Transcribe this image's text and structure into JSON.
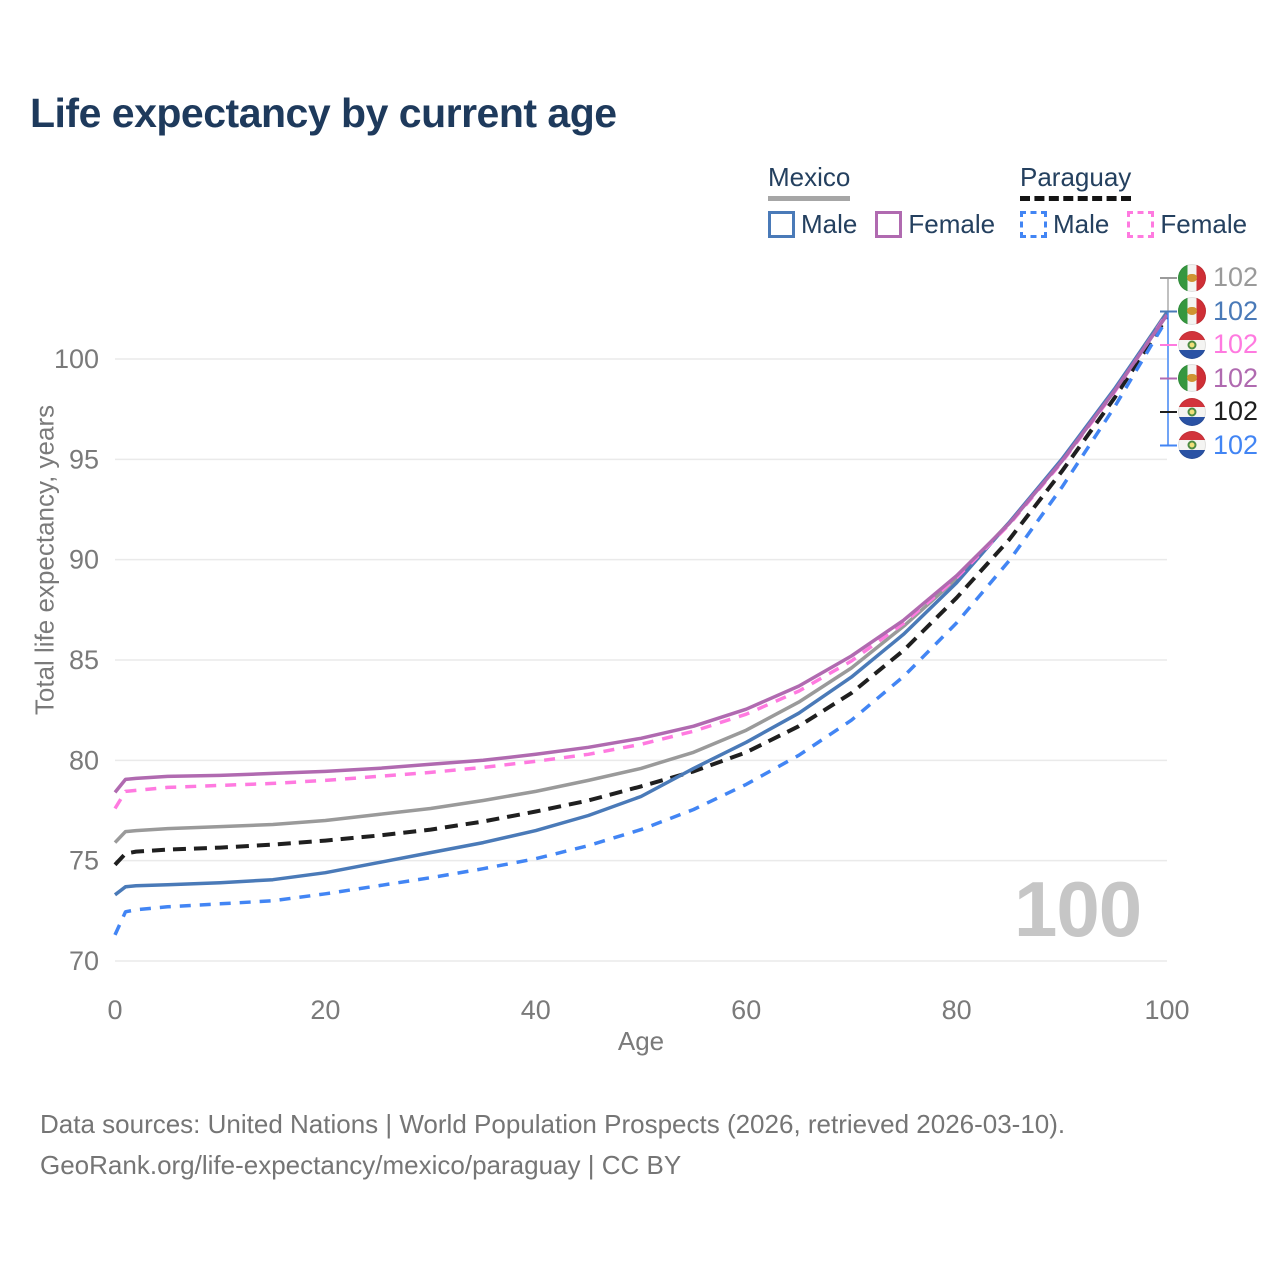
{
  "title": "Life expectancy by current age",
  "legend": {
    "groups": [
      {
        "country": "Mexico",
        "line_style": "solid",
        "items": [
          {
            "label": "Male",
            "series": "mexico_male"
          },
          {
            "label": "Female",
            "series": "mexico_female"
          }
        ]
      },
      {
        "country": "Paraguay",
        "line_style": "dashed",
        "items": [
          {
            "label": "Male",
            "series": "paraguay_male"
          },
          {
            "label": "Female",
            "series": "paraguay_female"
          }
        ]
      }
    ]
  },
  "watermark": "100",
  "footer": {
    "line1": "Data sources: United Nations | World Population Prospects (2026, retrieved 2026-03-10).",
    "line2": "GeoRank.org/life-expectancy/mexico/paraguay | CC BY"
  },
  "end_labels": [
    {
      "flag": "mexico",
      "series": "mexico_total",
      "value": "102",
      "color": "#9a9a9a"
    },
    {
      "flag": "mexico",
      "series": "mexico_male",
      "value": "102",
      "color": "#4a7ab8"
    },
    {
      "flag": "paraguay",
      "series": "paraguay_female",
      "value": "102",
      "color": "#ff7ae0"
    },
    {
      "flag": "mexico",
      "series": "mexico_female",
      "value": "102",
      "color": "#b06ab0"
    },
    {
      "flag": "paraguay",
      "series": "paraguay_total",
      "value": "102",
      "color": "#1f1f1f"
    },
    {
      "flag": "paraguay",
      "series": "paraguay_male",
      "value": "102",
      "color": "#4285f4"
    }
  ],
  "chart_data": {
    "type": "line",
    "title": "Life expectancy by current age",
    "xlabel": "Age",
    "ylabel": "Total life expectancy, years",
    "xlim": [
      0,
      100
    ],
    "ylim": [
      70,
      100
    ],
    "xticks": [
      0,
      20,
      40,
      60,
      80,
      100
    ],
    "yticks": [
      70,
      75,
      80,
      85,
      90,
      95,
      100
    ],
    "grid": true,
    "legend_position": "top-right",
    "x": [
      0,
      1,
      2,
      5,
      10,
      15,
      20,
      25,
      30,
      35,
      40,
      45,
      50,
      55,
      60,
      65,
      70,
      75,
      80,
      85,
      90,
      95,
      100
    ],
    "series": [
      {
        "key": "mexico_total",
        "name": "Mexico (both sexes)",
        "country": "Mexico",
        "dash": "solid",
        "color": "#9a9a9a",
        "values": [
          75.9,
          76.45,
          76.5,
          76.6,
          76.7,
          76.8,
          77.0,
          77.3,
          77.6,
          78.0,
          78.45,
          79.0,
          79.6,
          80.4,
          81.5,
          82.9,
          84.6,
          86.7,
          89.05,
          91.85,
          94.95,
          98.45,
          102.35
        ]
      },
      {
        "key": "mexico_male",
        "name": "Mexico Male",
        "country": "Mexico",
        "dash": "solid",
        "color": "#4a7ab8",
        "values": [
          73.3,
          73.7,
          73.75,
          73.8,
          73.9,
          74.05,
          74.4,
          74.9,
          75.4,
          75.9,
          76.5,
          77.25,
          78.2,
          79.6,
          80.9,
          82.35,
          84.15,
          86.3,
          88.85,
          91.85,
          95.0,
          98.5,
          102.3
        ]
      },
      {
        "key": "mexico_female",
        "name": "Mexico Female",
        "country": "Mexico",
        "dash": "solid",
        "color": "#b06ab0",
        "values": [
          78.4,
          79.05,
          79.1,
          79.2,
          79.25,
          79.35,
          79.45,
          79.6,
          79.8,
          80.0,
          80.3,
          80.65,
          81.1,
          81.7,
          82.55,
          83.7,
          85.2,
          87.0,
          89.2,
          91.8,
          94.9,
          98.4,
          102.2
        ]
      },
      {
        "key": "paraguay_total",
        "name": "Paraguay (both sexes)",
        "country": "Paraguay",
        "dash": "dashed",
        "color": "#1f1f1f",
        "values": [
          74.8,
          75.35,
          75.45,
          75.55,
          75.65,
          75.8,
          76.0,
          76.25,
          76.55,
          76.95,
          77.45,
          78.0,
          78.7,
          79.45,
          80.4,
          81.7,
          83.35,
          85.5,
          88.1,
          91.0,
          94.4,
          98.05,
          102.1
        ]
      },
      {
        "key": "paraguay_male",
        "name": "Paraguay Male",
        "country": "Paraguay",
        "dash": "dashed",
        "color": "#4285f4",
        "values": [
          71.3,
          72.45,
          72.55,
          72.7,
          72.85,
          73.0,
          73.35,
          73.75,
          74.15,
          74.6,
          75.1,
          75.75,
          76.55,
          77.55,
          78.8,
          80.25,
          82.0,
          84.2,
          86.85,
          89.95,
          93.6,
          97.6,
          102.0
        ]
      },
      {
        "key": "paraguay_female",
        "name": "Paraguay Female",
        "country": "Paraguay",
        "dash": "dashed",
        "color": "#ff7ae0",
        "values": [
          77.6,
          78.45,
          78.5,
          78.65,
          78.75,
          78.85,
          79.0,
          79.2,
          79.4,
          79.65,
          79.95,
          80.3,
          80.8,
          81.45,
          82.3,
          83.45,
          84.95,
          86.85,
          89.1,
          91.75,
          94.85,
          98.35,
          102.25
        ]
      }
    ]
  }
}
